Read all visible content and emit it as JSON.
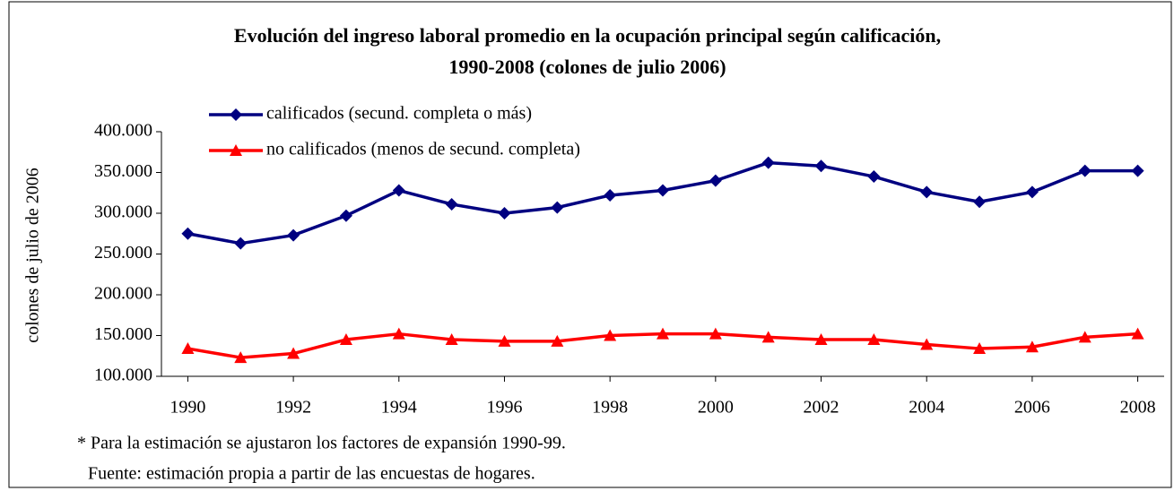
{
  "chart_data": {
    "type": "line",
    "title": [
      "Evolución del ingreso laboral promedio en la ocupación principal según calificación,",
      "1990-2008 (colones de julio 2006)"
    ],
    "y_label": "colones de julio de 2006",
    "x": [
      1990,
      1991,
      1992,
      1993,
      1994,
      1995,
      1996,
      1997,
      1998,
      1999,
      2000,
      2001,
      2002,
      2003,
      2004,
      2005,
      2006,
      2007,
      2008
    ],
    "xlim": [
      1989.5,
      2008.5
    ],
    "xticks": [
      1990,
      1992,
      1994,
      1996,
      1998,
      2000,
      2002,
      2004,
      2006,
      2008
    ],
    "ylim": [
      100000,
      400000
    ],
    "yticks": [
      {
        "value": 100000,
        "label": "100.000"
      },
      {
        "value": 150000,
        "label": "150.000"
      },
      {
        "value": 200000,
        "label": "200.000"
      },
      {
        "value": 250000,
        "label": "250.000"
      },
      {
        "value": 300000,
        "label": "300.000"
      },
      {
        "value": 350000,
        "label": "350.000"
      },
      {
        "value": 400000,
        "label": "400.000"
      }
    ],
    "grid": false,
    "legend": "top-left",
    "series": [
      {
        "name": "calificados (secund. completa o más)",
        "color": "#000080",
        "marker": "diamond",
        "values": [
          275000,
          263000,
          273000,
          297000,
          328000,
          311000,
          300000,
          307000,
          322000,
          328000,
          340000,
          362000,
          358000,
          345000,
          326000,
          314000,
          326000,
          352000,
          352000
        ]
      },
      {
        "name": "no calificados (menos de secund. completa)",
        "color": "#ff0000",
        "marker": "triangle",
        "values": [
          134000,
          123000,
          128000,
          145000,
          152000,
          145000,
          143000,
          143000,
          150000,
          152000,
          152000,
          148000,
          145000,
          145000,
          139000,
          134000,
          136000,
          148000,
          152000
        ]
      }
    ],
    "footnotes": [
      "* Para la estimación se ajustaron los factores de expansión 1990-99.",
      "Fuente: estimación propia a partir de las encuestas de hogares."
    ]
  }
}
